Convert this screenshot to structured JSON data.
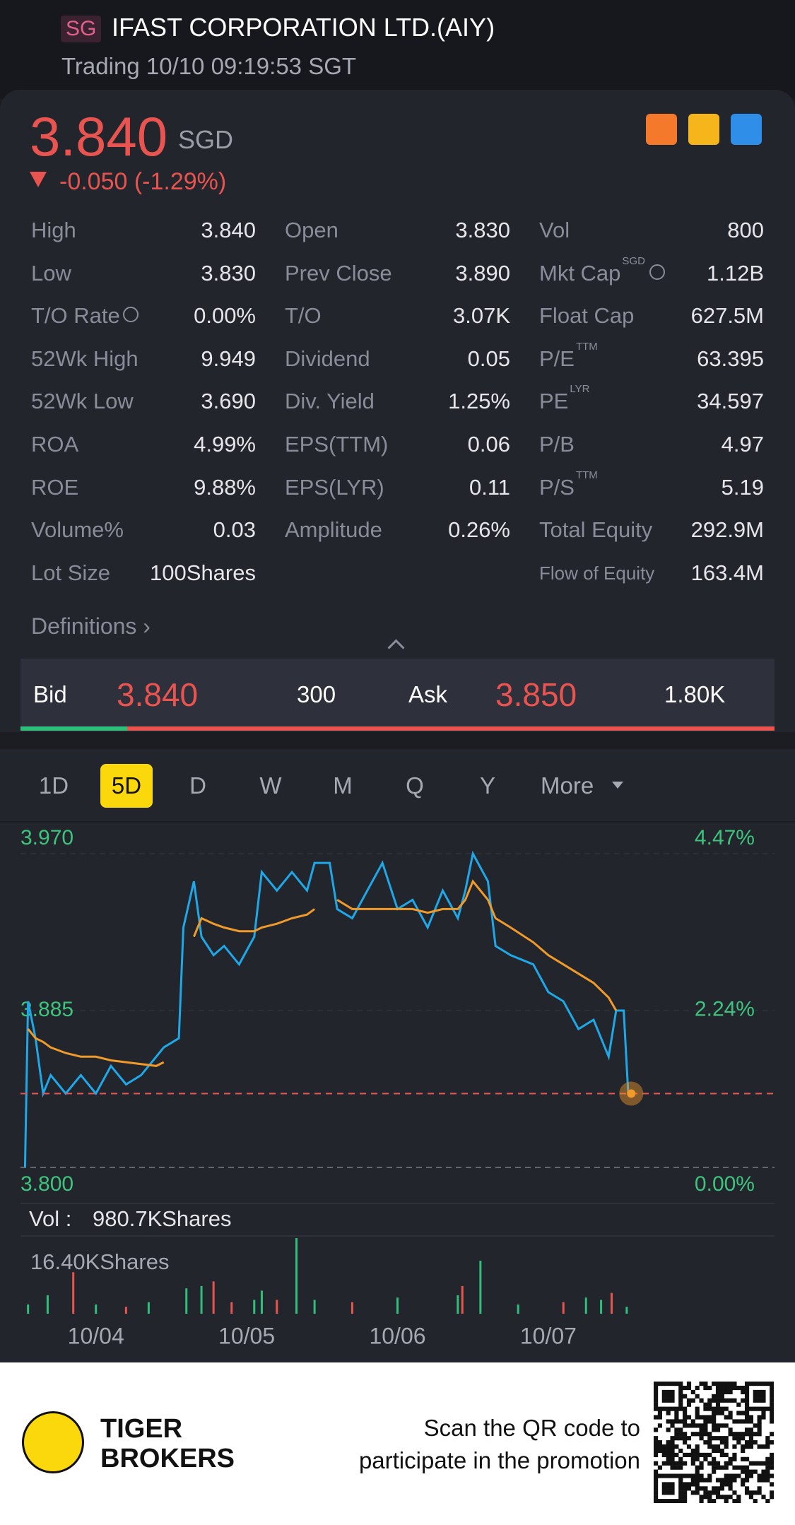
{
  "header": {
    "badge": "SG",
    "title": "IFAST CORPORATION LTD.(AIY)",
    "status": "Trading 10/10 09:19:53 SGT"
  },
  "quote": {
    "price": "3.840",
    "currency": "SGD",
    "change": "-0.050 (-1.29%)"
  },
  "stats": [
    [
      {
        "label": "High",
        "value": "3.840"
      },
      {
        "label": "Open",
        "value": "3.830"
      },
      {
        "label": "Vol",
        "value": "800"
      }
    ],
    [
      {
        "label": "Low",
        "value": "3.830"
      },
      {
        "label": "Prev Close",
        "value": "3.890"
      },
      {
        "label": "Mkt Cap",
        "sup": "SGD",
        "info": true,
        "value": "1.12B"
      }
    ],
    [
      {
        "label": "T/O Rate",
        "info": true,
        "value": "0.00%"
      },
      {
        "label": "T/O",
        "value": "3.07K"
      },
      {
        "label": "Float Cap",
        "value": "627.5M"
      }
    ],
    [
      {
        "label": "52Wk High",
        "value": "9.949"
      },
      {
        "label": "Dividend",
        "value": "0.05"
      },
      {
        "label": "P/E",
        "sup": "TTM",
        "value": "63.395"
      }
    ],
    [
      {
        "label": "52Wk Low",
        "value": "3.690"
      },
      {
        "label": "Div. Yield",
        "value": "1.25%"
      },
      {
        "label": "PE",
        "sup": "LYR",
        "value": "34.597"
      }
    ],
    [
      {
        "label": "ROA",
        "value": "4.99%"
      },
      {
        "label": "EPS(TTM)",
        "value": "0.06"
      },
      {
        "label": "P/B",
        "value": "4.97"
      }
    ],
    [
      {
        "label": "ROE",
        "value": "9.88%"
      },
      {
        "label": "EPS(LYR)",
        "value": "0.11"
      },
      {
        "label": "P/S",
        "sup": "TTM",
        "value": "5.19"
      }
    ],
    [
      {
        "label": "Volume%",
        "value": "0.03"
      },
      {
        "label": "Amplitude",
        "value": "0.26%"
      },
      {
        "label": "Total Equity",
        "value": "292.9M"
      }
    ],
    [
      {
        "label": "Lot Size",
        "value": "100Shares"
      },
      null,
      {
        "label": "Flow of Equity",
        "value": "163.4M"
      }
    ]
  ],
  "definitions": "Definitions",
  "bid_ask": {
    "bid_label": "Bid",
    "bid": "3.840",
    "bid_size": "300",
    "ask_label": "Ask",
    "ask": "3.850",
    "ask_size": "1.80K"
  },
  "tabs": {
    "items": [
      "1D",
      "5D",
      "D",
      "W",
      "M",
      "Q",
      "Y",
      "More"
    ],
    "active": 1
  },
  "chart_data": [
    {
      "type": "line",
      "x": [
        0.03,
        0.05,
        0.1,
        0.15,
        0.2,
        0.3,
        0.4,
        0.5,
        0.6,
        0.7,
        0.8,
        0.9,
        0.95,
        1.05,
        1.08,
        1.15,
        1.2,
        1.28,
        1.35,
        1.45,
        1.55,
        1.6,
        1.7,
        1.8,
        1.9,
        1.95,
        2.05,
        2.1,
        2.2,
        2.3,
        2.4,
        2.5,
        2.6,
        2.7,
        2.8,
        2.9,
        2.95,
        3.0,
        3.1,
        3.15,
        3.25,
        3.4,
        3.5,
        3.6,
        3.7,
        3.8,
        3.9,
        3.95,
        4.0,
        4.03,
        4.05
      ],
      "series": [
        {
          "color": "#1ea8e8",
          "values": [
            3.8,
            3.89,
            3.87,
            3.84,
            3.85,
            3.84,
            3.85,
            3.84,
            3.855,
            3.845,
            3.85,
            3.86,
            3.865,
            3.87,
            3.93,
            3.955,
            3.925,
            3.915,
            3.92,
            3.91,
            3.925,
            3.96,
            3.95,
            3.96,
            3.95,
            3.965,
            3.965,
            3.94,
            3.935,
            3.95,
            3.965,
            3.94,
            3.945,
            3.93,
            3.95,
            3.935,
            3.95,
            3.97,
            3.955,
            3.92,
            3.915,
            3.91,
            3.895,
            3.89,
            3.875,
            3.88,
            3.86,
            3.885,
            3.885,
            3.84,
            3.84
          ]
        },
        {
          "color": "#f09a2a",
          "values": [
            null,
            3.875,
            3.87,
            3.868,
            3.865,
            3.862,
            3.86,
            3.86,
            3.858,
            3.857,
            3.856,
            3.855,
            3.857,
            null,
            null,
            3.925,
            3.935,
            3.932,
            3.93,
            3.928,
            3.928,
            3.93,
            3.932,
            3.935,
            3.937,
            3.94,
            null,
            3.945,
            3.94,
            3.94,
            3.94,
            3.94,
            3.94,
            3.938,
            3.94,
            3.94,
            3.945,
            3.955,
            3.945,
            3.935,
            3.93,
            3.922,
            3.915,
            3.91,
            3.905,
            3.9,
            3.892,
            3.885,
            null,
            null,
            null
          ]
        }
      ],
      "ref_line": {
        "value": 3.84,
        "color": "#e9544f"
      },
      "xlim": [
        0,
        5
      ],
      "xticks": [
        {
          "value": 0.5,
          "label": "10/04"
        },
        {
          "value": 1.5,
          "label": "10/05"
        },
        {
          "value": 2.5,
          "label": "10/06"
        },
        {
          "value": 3.5,
          "label": "10/07"
        }
      ],
      "ylim": [
        3.8,
        3.97
      ],
      "yticks": [
        {
          "value": 3.8,
          "label": "3.800"
        },
        {
          "value": 3.885,
          "label": "3.885"
        },
        {
          "value": 3.97,
          "label": "3.970"
        }
      ],
      "y2lim": [
        0,
        4.47
      ],
      "y2ticks": [
        {
          "value": 0,
          "label": "0.00%"
        },
        {
          "value": 2.24,
          "label": "2.24%"
        },
        {
          "value": 4.47,
          "label": "4.47%"
        }
      ]
    },
    {
      "type": "bar",
      "title": "Vol :",
      "summary": "980.7KShares",
      "x": [
        0.05,
        0.18,
        0.35,
        0.5,
        0.7,
        0.85,
        1.1,
        1.2,
        1.28,
        1.4,
        1.55,
        1.6,
        1.7,
        1.83,
        1.95,
        2.2,
        2.5,
        2.9,
        2.93,
        3.05,
        3.3,
        3.6,
        3.75,
        3.85,
        3.92,
        4.02
      ],
      "values": [
        2000,
        4000,
        9000,
        2000,
        1500,
        2500,
        5500,
        6000,
        7000,
        2500,
        3000,
        5000,
        3000,
        16400,
        3000,
        2500,
        3500,
        4000,
        6000,
        11500,
        2000,
        2500,
        3500,
        3000,
        4500,
        1500
      ],
      "colors": [
        "#2fbf7a",
        "#2fbf7a",
        "#e9544f",
        "#2fbf7a",
        "#e9544f",
        "#2fbf7a",
        "#2fbf7a",
        "#2fbf7a",
        "#e9544f",
        "#e9544f",
        "#2fbf7a",
        "#2fbf7a",
        "#e9544f",
        "#2fbf7a",
        "#2fbf7a",
        "#e9544f",
        "#2fbf7a",
        "#2fbf7a",
        "#e9544f",
        "#2fbf7a",
        "#2fbf7a",
        "#e9544f",
        "#2fbf7a",
        "#2fbf7a",
        "#e9544f",
        "#2fbf7a"
      ],
      "xlim": [
        0,
        5
      ],
      "ylim": [
        0,
        16400
      ],
      "yticks": [
        {
          "value": 16400,
          "label": "16.40KShares"
        }
      ]
    }
  ],
  "footer": {
    "brand_line1": "TIGER",
    "brand_line2": "BROKERS",
    "promo_line1": "Scan the QR code to",
    "promo_line2": "participate in the promotion"
  }
}
